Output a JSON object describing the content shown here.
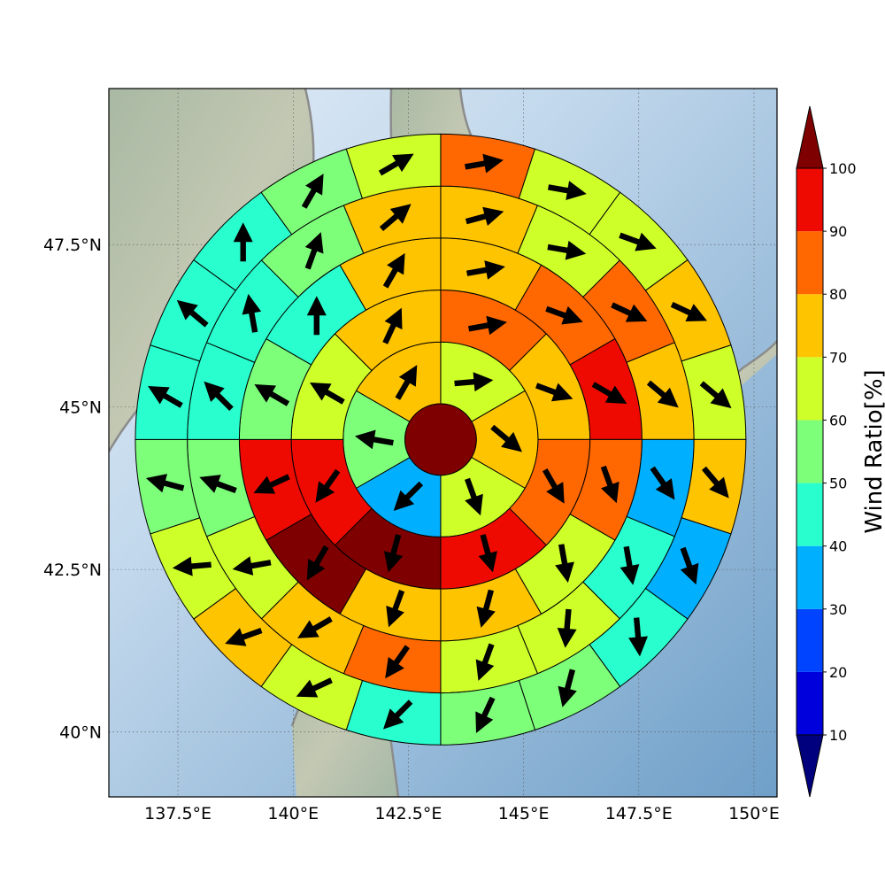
{
  "chart_data": {
    "type": "polar-sector-map",
    "lon_ticks": [
      137.5,
      140,
      142.5,
      145,
      147.5,
      150
    ],
    "lat_ticks": [
      40,
      42.5,
      45,
      47.5
    ],
    "lon_tick_labels": [
      "137.5°E",
      "140°E",
      "142.5°E",
      "145°E",
      "147.5°E",
      "150°E"
    ],
    "lat_tick_labels": [
      "40°N",
      "42.5°N",
      "45°N",
      "47.5°N"
    ],
    "lon_range": [
      136.0,
      150.5
    ],
    "lat_range": [
      39.0,
      49.9
    ],
    "center": {
      "lon": 143.2,
      "lat": 44.5
    },
    "ring_radius_deg": [
      0.55,
      1.5,
      2.3,
      3.1,
      3.9,
      4.7
    ],
    "center_ratio": 100,
    "rings": [
      {
        "sector_count": 6,
        "ratio": [
          60,
          70,
          60,
          35,
          50,
          70
        ],
        "arrow_dir": [
          85,
          130,
          160,
          225,
          280,
          30
        ]
      },
      {
        "sector_count": 8,
        "ratio": [
          80,
          70,
          80,
          90,
          100,
          90,
          60,
          70
        ],
        "arrow_dir": [
          80,
          110,
          150,
          165,
          195,
          215,
          300,
          25
        ]
      },
      {
        "sector_count": 12,
        "ratio": [
          70,
          80,
          90,
          80,
          60,
          70,
          70,
          100,
          90,
          50,
          40,
          70
        ],
        "arrow_dir": [
          80,
          110,
          120,
          160,
          170,
          195,
          200,
          210,
          245,
          300,
          0,
          30
        ]
      },
      {
        "sector_count": 16,
        "ratio": [
          70,
          60,
          80,
          70,
          30,
          40,
          60,
          60,
          80,
          70,
          60,
          50,
          40,
          40,
          50,
          70
        ],
        "arrow_dir": [
          75,
          100,
          115,
          130,
          145,
          170,
          185,
          200,
          215,
          240,
          260,
          290,
          315,
          350,
          20,
          50
        ]
      },
      {
        "sector_count": 20,
        "ratio": [
          80,
          60,
          60,
          70,
          60,
          70,
          30,
          40,
          50,
          50,
          40,
          60,
          70,
          60,
          50,
          40,
          40,
          40,
          50,
          60
        ],
        "arrow_dir": [
          80,
          100,
          110,
          115,
          130,
          140,
          160,
          175,
          195,
          205,
          225,
          245,
          250,
          265,
          285,
          300,
          310,
          0,
          30,
          60
        ]
      },
      {
        "sector_count": 24,
        "ratio": [
          80,
          60,
          60,
          60,
          60,
          60,
          20,
          30,
          40,
          40,
          40,
          40,
          50,
          60,
          60,
          70,
          60,
          60,
          30,
          30,
          30,
          20,
          40,
          70
        ],
        "arrow_dir": [
          75,
          95,
          110,
          120,
          130,
          140,
          155,
          170,
          180,
          195,
          200,
          205,
          210,
          230,
          250,
          255,
          270,
          290,
          295,
          320,
          330,
          340,
          355,
          30
        ]
      }
    ],
    "colorbar": {
      "label": "Wind Ratio[%]",
      "ticks": [
        10,
        20,
        30,
        40,
        50,
        60,
        70,
        80,
        90,
        100
      ],
      "colors": [
        "#00007f",
        "#0000dd",
        "#0044ff",
        "#00b0ff",
        "#29ffce",
        "#7dff7a",
        "#ceff29",
        "#ffc400",
        "#ff6800",
        "#ee0a00",
        "#7f0000"
      ]
    }
  }
}
